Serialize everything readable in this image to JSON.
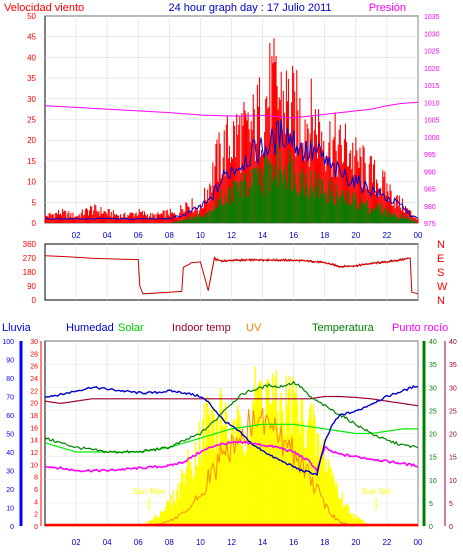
{
  "title": "24 hour graph day : 17 Julio 2011",
  "chart_data": [
    {
      "id": "wind",
      "type": "line",
      "left_label": "Velocidad viento",
      "right_label": "Presión",
      "left_ticks": [
        "0",
        "5",
        "10",
        "15",
        "20",
        "25",
        "30",
        "35",
        "40",
        "45",
        "50"
      ],
      "right_ticks": [
        "975",
        "980",
        "985",
        "990",
        "995",
        "1000",
        "1005",
        "1010",
        "1015",
        "1020",
        "1025",
        "1030",
        "1035"
      ],
      "ylim": [
        0,
        50
      ],
      "ylim_right": [
        975,
        1035
      ],
      "x_ticks": [
        "02",
        "04",
        "06",
        "08",
        "10",
        "12",
        "14",
        "16",
        "18",
        "20",
        "22",
        "00"
      ],
      "xlim": [
        0,
        24
      ],
      "colors": {
        "gust": "#ff0000",
        "average": "#0000cc",
        "speed": "#008000",
        "pressure": "#ff00ff",
        "axis_left": "#ff0000",
        "axis_right": "#ff00ff"
      },
      "series": [
        {
          "key": "gust",
          "x": [
            0,
            1,
            2,
            3,
            4,
            5,
            6,
            7,
            8,
            8.5,
            9,
            9.5,
            10,
            10.5,
            11,
            11.5,
            12,
            12.5,
            13,
            13.5,
            14,
            14.5,
            15,
            15.5,
            16,
            16.5,
            17,
            17.5,
            18,
            18.5,
            19,
            19.5,
            20,
            20.5,
            21,
            21.5,
            22,
            22.5,
            23,
            23.5,
            24
          ],
          "values": [
            2,
            3,
            2,
            4,
            3,
            2,
            3,
            2,
            3,
            2,
            6,
            5,
            4,
            10,
            17,
            21,
            24,
            26,
            25,
            28,
            33,
            38,
            37,
            35,
            32,
            30,
            30,
            28,
            25,
            23,
            21,
            22,
            18,
            16,
            14,
            12,
            10,
            7,
            5,
            3,
            1
          ]
        },
        {
          "key": "average",
          "x": [
            0,
            2,
            4,
            6,
            8,
            9,
            9.5,
            10,
            10.5,
            11,
            11.5,
            12,
            12.5,
            13,
            13.5,
            14,
            14.5,
            15,
            15.5,
            16,
            16.5,
            17,
            17.5,
            18,
            18.5,
            19,
            19.5,
            20,
            20.5,
            21,
            21.5,
            22,
            22.5,
            23,
            23.5,
            24
          ],
          "values": [
            1,
            1,
            1,
            1,
            1,
            2,
            3,
            4,
            5,
            8,
            11,
            13,
            14,
            16,
            17,
            18,
            19,
            21,
            22,
            20,
            18,
            17,
            17,
            15,
            13,
            12,
            11,
            10,
            9,
            8,
            7,
            6,
            5,
            4,
            2,
            1
          ]
        },
        {
          "key": "speed",
          "x": [
            0,
            2,
            4,
            6,
            8,
            9,
            10,
            10.5,
            11,
            11.5,
            12,
            12.5,
            13,
            13.5,
            14,
            14.5,
            15,
            15.5,
            16,
            16.5,
            17,
            17.5,
            18,
            18.5,
            19,
            19.5,
            20,
            20.5,
            21,
            21.5,
            22,
            22.5,
            23,
            23.5,
            24
          ],
          "values": [
            0,
            0,
            0,
            0,
            0,
            1,
            2,
            3,
            5,
            7,
            8,
            10,
            10,
            11,
            13,
            14,
            15,
            16,
            14,
            12,
            11,
            10,
            9,
            8,
            7,
            6,
            6,
            5,
            4,
            4,
            3,
            2,
            2,
            1,
            0
          ]
        },
        {
          "key": "pressure",
          "x": [
            0,
            2,
            4,
            6,
            8,
            10,
            12,
            13,
            14,
            15,
            16,
            17,
            18,
            19,
            20,
            21,
            22,
            23,
            24
          ],
          "values": [
            1009,
            1008.5,
            1008,
            1007.5,
            1007,
            1006.3,
            1006,
            1006,
            1006.2,
            1005.8,
            1005.5,
            1006,
            1006.5,
            1007,
            1007.5,
            1008,
            1009,
            1009.7,
            1010
          ]
        }
      ]
    },
    {
      "id": "direction",
      "type": "line",
      "left_ticks": [
        "0",
        "90",
        "180",
        "270",
        "360"
      ],
      "right_ticks": [
        "N",
        "W",
        "S",
        "E",
        "N"
      ],
      "ylim": [
        0,
        360
      ],
      "x_ticks": [],
      "xlim": [
        0,
        24
      ],
      "colors": {
        "line": "#cc0000",
        "axis_left": "#ff0000",
        "axis_right": "#ff0000"
      },
      "series": [
        {
          "key": "direction",
          "x": [
            0,
            1,
            2,
            3,
            4,
            5,
            6,
            6.1,
            6.3,
            8,
            8.8,
            8.9,
            9.3,
            9.4,
            10,
            10.4,
            10.5,
            10.9,
            11,
            11.5,
            12,
            14,
            16,
            17,
            18,
            19,
            20,
            21,
            22,
            23,
            23.5,
            23.6,
            24
          ],
          "values": [
            285,
            280,
            275,
            268,
            265,
            262,
            260,
            90,
            40,
            50,
            55,
            210,
            230,
            240,
            245,
            100,
            60,
            270,
            260,
            250,
            255,
            258,
            255,
            250,
            240,
            215,
            220,
            235,
            245,
            260,
            270,
            50,
            40
          ]
        }
      ]
    },
    {
      "id": "climate",
      "type": "line",
      "labels": {
        "rain": "Lluvia",
        "humidity": "Humedad",
        "solar": "Solar",
        "indoor": "Indoor temp",
        "uv": "UV",
        "temperature": "Temperatura",
        "dewpoint": "Punto rocío"
      },
      "rain_ticks": [
        "0",
        "10",
        "20",
        "30",
        "40",
        "50",
        "60",
        "70",
        "80",
        "90",
        "100"
      ],
      "humidity_ticks": [
        "0",
        "2",
        "4",
        "6",
        "8",
        "10",
        "12",
        "14",
        "16",
        "18",
        "20",
        "22",
        "24",
        "26",
        "28",
        "30"
      ],
      "temp_ticks": [
        "0",
        "5",
        "10",
        "15",
        "20",
        "25",
        "30",
        "35",
        "40"
      ],
      "sun_labels": {
        "rise": "Sun Rise",
        "set": "Sun Set"
      },
      "x_ticks": [
        "02",
        "04",
        "06",
        "08",
        "10",
        "12",
        "14",
        "16",
        "18",
        "20",
        "22",
        "00"
      ],
      "xlim": [
        0,
        24
      ],
      "ylim": [
        0,
        100
      ],
      "ylim_temp": [
        0,
        40
      ],
      "colors": {
        "rain": "#0000ff",
        "humidity": "#0000cc",
        "solar": "#ffff00",
        "solar_smooth": "#00ee00",
        "indoor": "#990033",
        "uv": "#ff8800",
        "temperature": "#008000",
        "dewpoint": "#ff00ff",
        "axis_rain": "#0000ff",
        "axis_humidity": "#ff0000",
        "axis_temp": "#008000",
        "axis_dew": "#990033"
      },
      "series": [
        {
          "key": "humidity",
          "axis": "percent",
          "x": [
            0,
            1,
            2,
            3,
            4,
            5,
            6,
            7,
            8,
            9,
            10,
            10.5,
            11,
            11.5,
            12,
            12.5,
            13,
            13.5,
            14,
            14.5,
            15,
            15.5,
            16,
            16.5,
            17,
            17.5,
            18,
            18.5,
            19,
            20,
            21,
            22,
            23,
            24
          ],
          "values": [
            70,
            71,
            73,
            75,
            74,
            73,
            72,
            72,
            73,
            72,
            70,
            67,
            62,
            57,
            54,
            51,
            47,
            43,
            41,
            38,
            36,
            34,
            32,
            30,
            29,
            28,
            45,
            55,
            60,
            62,
            66,
            70,
            73,
            76
          ]
        },
        {
          "key": "temperature",
          "axis": "temp",
          "x": [
            0,
            1,
            2,
            3,
            4,
            5,
            6,
            7,
            8,
            9,
            10,
            10.5,
            11,
            11.5,
            12,
            12.5,
            13,
            13.5,
            14,
            14.5,
            15,
            15.5,
            16,
            16.5,
            17,
            17.5,
            18,
            18.5,
            19,
            20,
            21,
            22,
            23,
            24
          ],
          "values": [
            19,
            18,
            17,
            16.5,
            16,
            16,
            16,
            16.5,
            17,
            18.5,
            20,
            21.5,
            23,
            25,
            26.5,
            28,
            29,
            29.5,
            30,
            30.5,
            30,
            30.5,
            31,
            30,
            28,
            27,
            26,
            25,
            24,
            22,
            20,
            18.5,
            17.5,
            17
          ]
        },
        {
          "key": "indoor",
          "axis": "temp",
          "x": [
            0,
            1,
            2,
            3,
            4,
            6,
            8,
            10,
            12,
            14,
            16,
            17,
            18,
            19,
            20,
            21,
            22,
            23,
            24
          ],
          "values": [
            27,
            26.5,
            27,
            27.5,
            27.5,
            27.5,
            27.5,
            27.5,
            27.5,
            27.5,
            27.5,
            27.5,
            28,
            28,
            27.8,
            27.5,
            27,
            26.5,
            26
          ]
        },
        {
          "key": "solar_smooth",
          "axis": "temp",
          "x": [
            0,
            1,
            2,
            3,
            4,
            6,
            8,
            9,
            10,
            11,
            12,
            13,
            14,
            15,
            16,
            17,
            18,
            19,
            20,
            21,
            22,
            23,
            24
          ],
          "values": [
            18,
            17,
            16,
            16,
            16,
            16,
            17,
            18,
            19,
            20,
            21,
            21.5,
            22,
            22,
            22,
            21.5,
            21,
            20.5,
            20,
            20,
            20.5,
            21,
            21
          ]
        },
        {
          "key": "dewpoint",
          "axis": "temp",
          "x": [
            0,
            1,
            2,
            3,
            4,
            6,
            8,
            9,
            10,
            11,
            12,
            13,
            14,
            15,
            16,
            17,
            17.5,
            18,
            18.5,
            19,
            20,
            21,
            22,
            23,
            24
          ],
          "values": [
            13,
            12.5,
            12,
            12,
            12,
            12.5,
            13,
            14,
            16,
            17.5,
            18,
            18,
            17.5,
            17,
            16,
            14,
            12,
            17,
            16,
            15.5,
            15,
            14.5,
            14,
            13.5,
            13
          ]
        },
        {
          "key": "solar",
          "axis": "percent",
          "type": "area",
          "x": [
            0,
            6,
            6.5,
            7,
            7.5,
            8,
            8.5,
            9,
            9.5,
            10,
            10.5,
            11,
            11.5,
            12,
            12.5,
            13,
            13.5,
            14,
            14.5,
            15,
            15.5,
            16,
            16.5,
            17,
            17.5,
            18,
            18.5,
            19,
            19.5,
            20,
            20.5,
            21,
            24
          ],
          "values": [
            0,
            0,
            2,
            5,
            10,
            16,
            22,
            38,
            45,
            60,
            75,
            65,
            80,
            55,
            65,
            70,
            85,
            92,
            88,
            78,
            82,
            86,
            70,
            75,
            55,
            48,
            35,
            20,
            12,
            6,
            3,
            0,
            0
          ]
        },
        {
          "key": "uv",
          "axis": "percent",
          "x": [
            0,
            7,
            8,
            9,
            9.5,
            10,
            10.5,
            11,
            11.5,
            12,
            12.5,
            13,
            13.5,
            14,
            14.5,
            15,
            15.5,
            16,
            16.5,
            17,
            17.5,
            18,
            18.5,
            19,
            20,
            24
          ],
          "values": [
            0,
            0,
            3,
            7,
            12,
            18,
            26,
            33,
            40,
            45,
            48,
            52,
            56,
            58,
            55,
            50,
            46,
            42,
            36,
            28,
            20,
            12,
            6,
            2,
            0,
            0
          ]
        },
        {
          "key": "rain",
          "axis": "percent",
          "x": [
            0,
            24
          ],
          "values": [
            0,
            0
          ]
        }
      ],
      "sun_events": {
        "rise": 6.7,
        "set": 21.3
      }
    }
  ]
}
